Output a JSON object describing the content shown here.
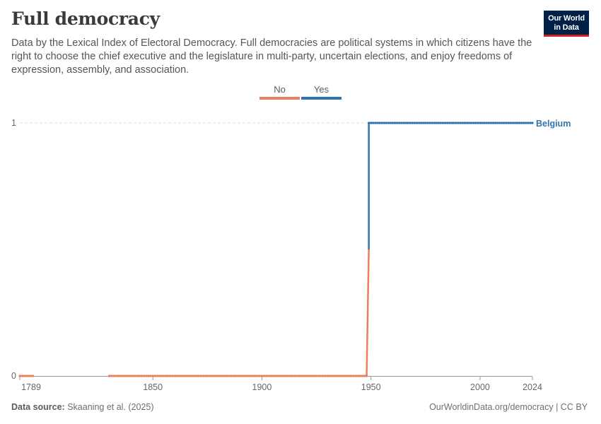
{
  "header": {
    "title": "Full democracy",
    "subtitle": "Data by the Lexical Index of Electoral Democracy. Full democracies are political systems in which citizens have the right to choose the chief executive and the legislature in multi-party, uncertain elections, and enjoy freedoms of expression, assembly, and association."
  },
  "logo": {
    "line1": "Our World",
    "line2": "in Data",
    "bg": "#002147",
    "accent": "#ce261e"
  },
  "footer": {
    "source_label": "Data source:",
    "source_value": "Skaaning et al. (2025)",
    "url": "OurWorldinData.org/democracy | CC BY"
  },
  "chart_data": {
    "type": "line",
    "legend": [
      {
        "label": "No",
        "color": "#e9805c"
      },
      {
        "label": "Yes",
        "color": "#2f74ae"
      }
    ],
    "legend_placement": "top-center",
    "x_ticks": [
      1789,
      1850,
      1900,
      1950,
      2000,
      2024
    ],
    "y_ticks": [
      0,
      1
    ],
    "xlim": [
      1789,
      2024
    ],
    "ylim": [
      0,
      1
    ],
    "grid": "horizontal dashed",
    "series": [
      {
        "name": "Belgium",
        "segments": [
          {
            "category": "No",
            "from": 1789,
            "to": 1795,
            "value": 0
          },
          {
            "category": "No",
            "from": 1830,
            "to": 1948,
            "value": 0
          },
          {
            "category": "Yes",
            "from": 1949,
            "to": 2024,
            "value": 1
          }
        ]
      }
    ]
  }
}
